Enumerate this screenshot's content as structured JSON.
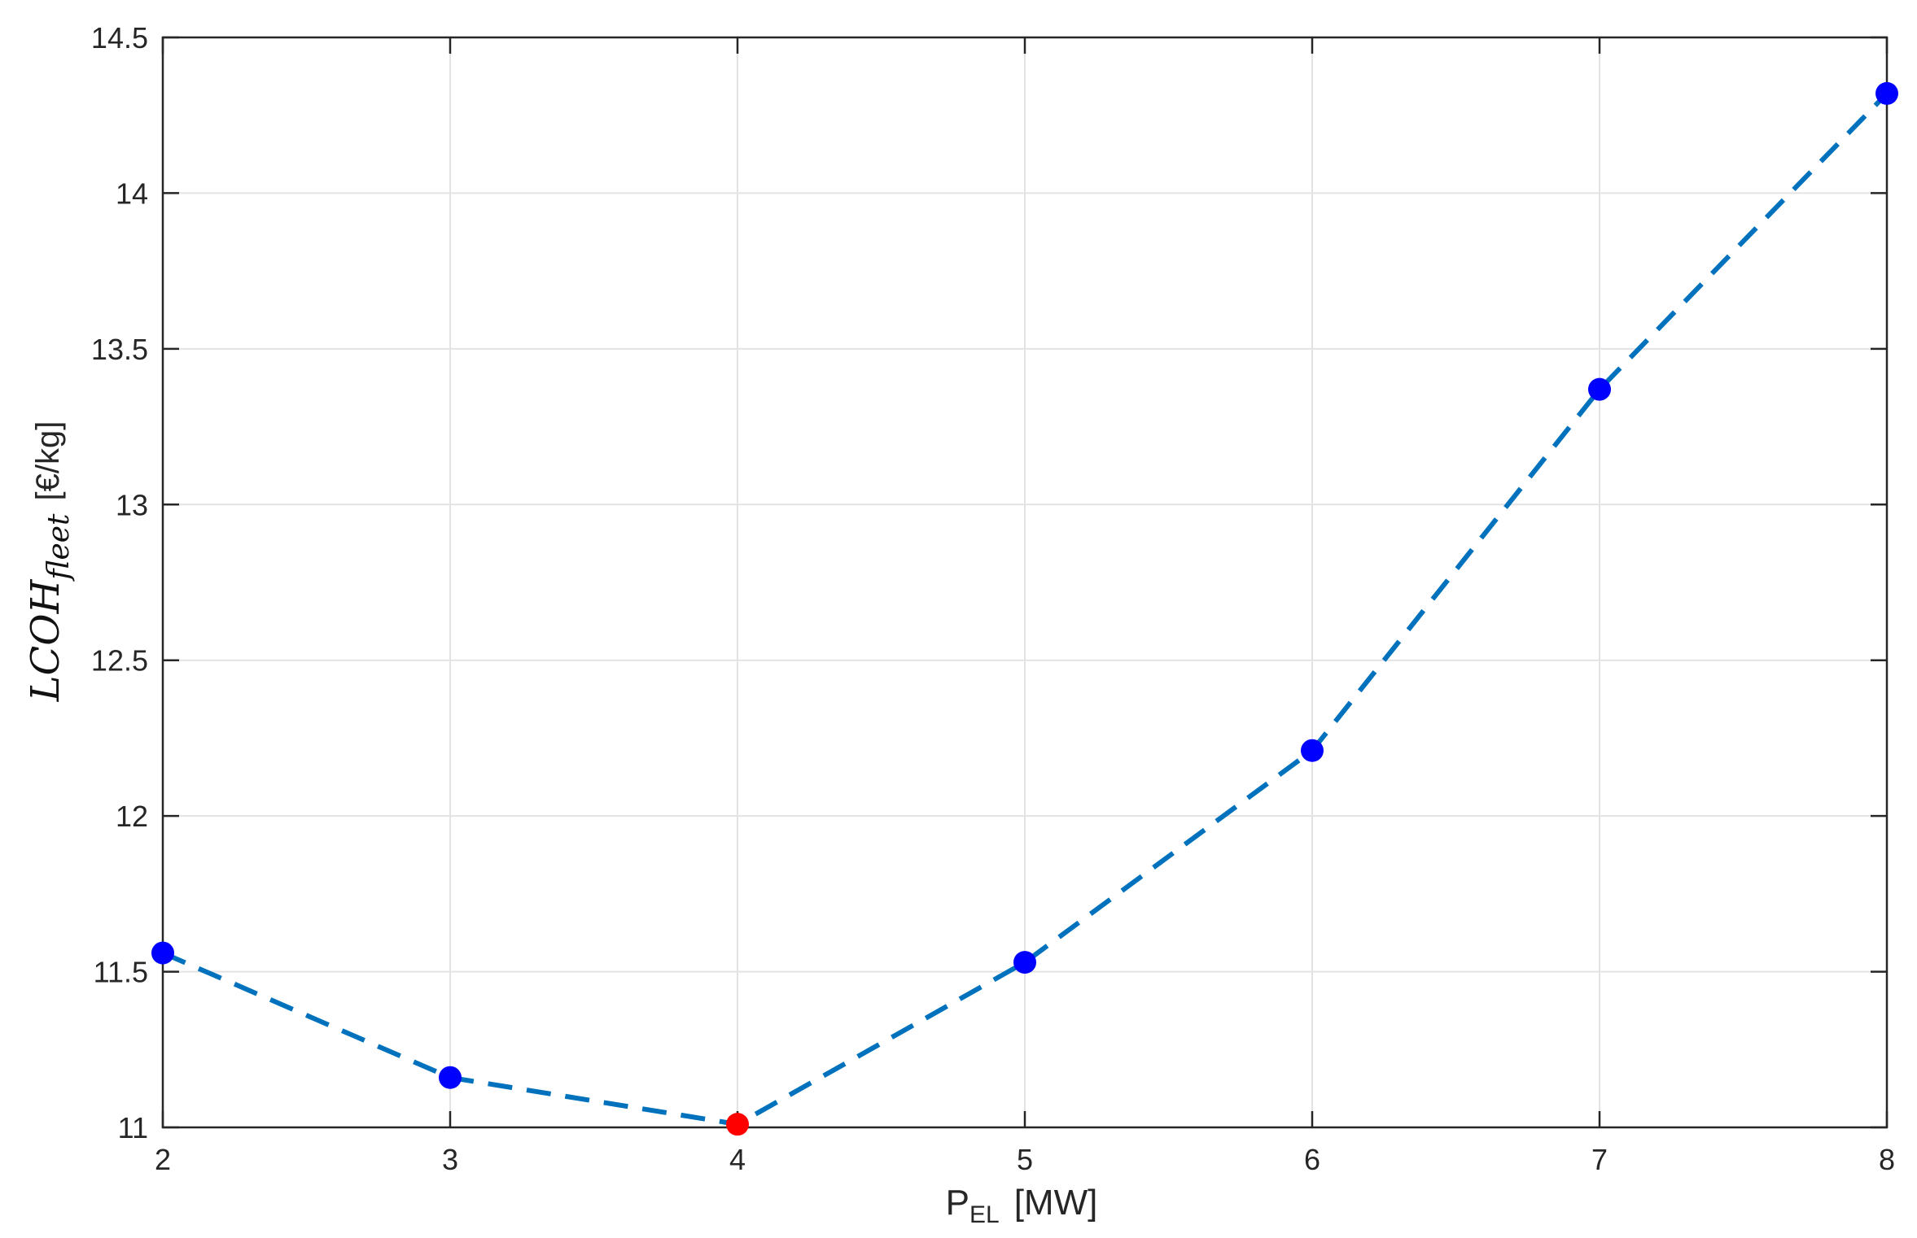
{
  "chart_data": {
    "type": "line",
    "title": "",
    "xlabel": {
      "main": "P",
      "sub": "EL",
      "unit": "[MW]"
    },
    "ylabel": {
      "main": "LCOH",
      "sub": "fleet",
      "unit": "[€/kg]"
    },
    "xlim": [
      2,
      8
    ],
    "ylim": [
      11,
      14.5
    ],
    "xticks": [
      2,
      3,
      4,
      5,
      6,
      7,
      8
    ],
    "xtick_labels": [
      "2",
      "3",
      "4",
      "5",
      "6",
      "7",
      "8"
    ],
    "yticks": [
      11,
      11.5,
      12,
      12.5,
      13,
      13.5,
      14,
      14.5
    ],
    "ytick_labels": [
      "11",
      "11.5",
      "12",
      "12.5",
      "13",
      "13.5",
      "14",
      "14.5"
    ],
    "grid": true,
    "series": [
      {
        "x": [
          2,
          3,
          4,
          5,
          6,
          7,
          8
        ],
        "y": [
          11.56,
          11.16,
          11.01,
          11.53,
          12.21,
          13.37,
          14.32
        ],
        "line_style": "dashed",
        "line_color": "#0072BD",
        "marker_color": "#0000ff"
      }
    ],
    "highlight": {
      "x": 4,
      "y": 11.01,
      "color": "#ff0000"
    }
  }
}
